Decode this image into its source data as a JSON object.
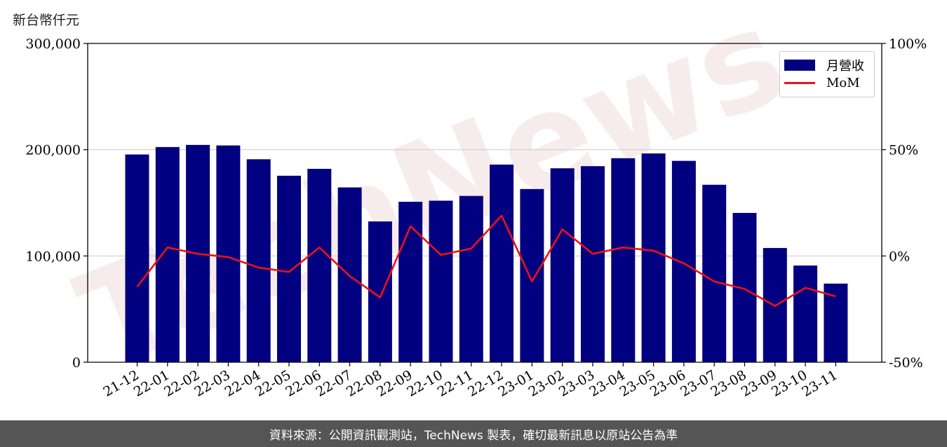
{
  "unit_label": "新台幣仟元",
  "footer_text": "資料來源：公開資訊觀測站，TechNews 製表，確切最新訊息以原站公告為準",
  "watermark": "TechNews",
  "colors": {
    "bar": "#000080",
    "line": "#ee1111",
    "footer_bg": "#555555"
  },
  "chart_data": {
    "type": "bar",
    "categories": [
      "21-12",
      "22-01",
      "22-02",
      "22-03",
      "22-04",
      "22-05",
      "22-06",
      "22-07",
      "22-08",
      "22-09",
      "22-10",
      "22-11",
      "22-12",
      "23-01",
      "23-02",
      "23-03",
      "23-04",
      "23-05",
      "23-06",
      "23-07",
      "23-08",
      "23-09",
      "23-10",
      "23-11"
    ],
    "series": [
      {
        "name": "月營收",
        "type": "bar",
        "axis": "left",
        "values": [
          195500,
          202500,
          204500,
          204000,
          191000,
          175500,
          182000,
          164500,
          132500,
          151000,
          152000,
          156500,
          186000,
          163000,
          182500,
          184500,
          192000,
          196500,
          189500,
          167000,
          140500,
          107500,
          91000,
          74000
        ]
      },
      {
        "name": "MoM",
        "type": "line",
        "axis": "right",
        "values": [
          -14.5,
          4,
          1,
          -0.5,
          -5.5,
          -7.5,
          4,
          -9.5,
          -19.5,
          14,
          0.5,
          3.5,
          19,
          -12,
          12.5,
          1,
          4,
          2.5,
          -3.5,
          -12,
          -15.5,
          -23.5,
          -15,
          -19
        ]
      }
    ],
    "y_left": {
      "min": 0,
      "max": 300000,
      "ticks": [
        0,
        100000,
        200000,
        300000
      ],
      "tick_labels": [
        "0",
        "100,000",
        "200,000",
        "300,000"
      ]
    },
    "y_right": {
      "min": -50,
      "max": 100,
      "ticks": [
        -50,
        0,
        50,
        100
      ],
      "tick_labels": [
        "-50%",
        "0%",
        "50%",
        "100%"
      ]
    },
    "grid": "horizontal",
    "legend_position": "top-right"
  }
}
